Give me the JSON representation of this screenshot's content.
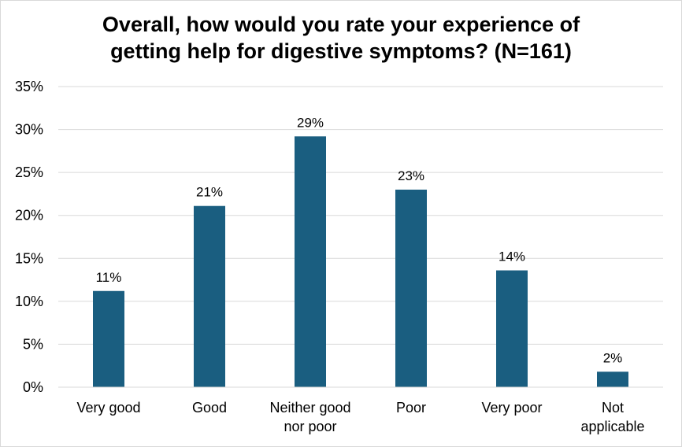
{
  "chart_data": {
    "type": "bar",
    "title_lines": [
      "Overall, how would you rate your experience of",
      "getting help for digestive symptoms? (N=161)"
    ],
    "categories": [
      [
        "Very good"
      ],
      [
        "Good"
      ],
      [
        "Neither good",
        "nor poor"
      ],
      [
        "Poor"
      ],
      [
        "Very poor"
      ],
      [
        "Not",
        "applicable"
      ]
    ],
    "values": [
      11.2,
      21.1,
      29.2,
      23.0,
      13.6,
      1.8
    ],
    "data_labels": [
      "11%",
      "21%",
      "29%",
      "23%",
      "14%",
      "2%"
    ],
    "yticks": [
      0,
      5,
      10,
      15,
      20,
      25,
      30,
      35
    ],
    "ytick_labels": [
      "0%",
      "5%",
      "10%",
      "15%",
      "20%",
      "25%",
      "30%",
      "35%"
    ],
    "ylim": [
      0,
      35
    ],
    "grid": true,
    "legend": "none",
    "bar_color": "#1a5e80",
    "grid_color": "#d9d9d9"
  }
}
